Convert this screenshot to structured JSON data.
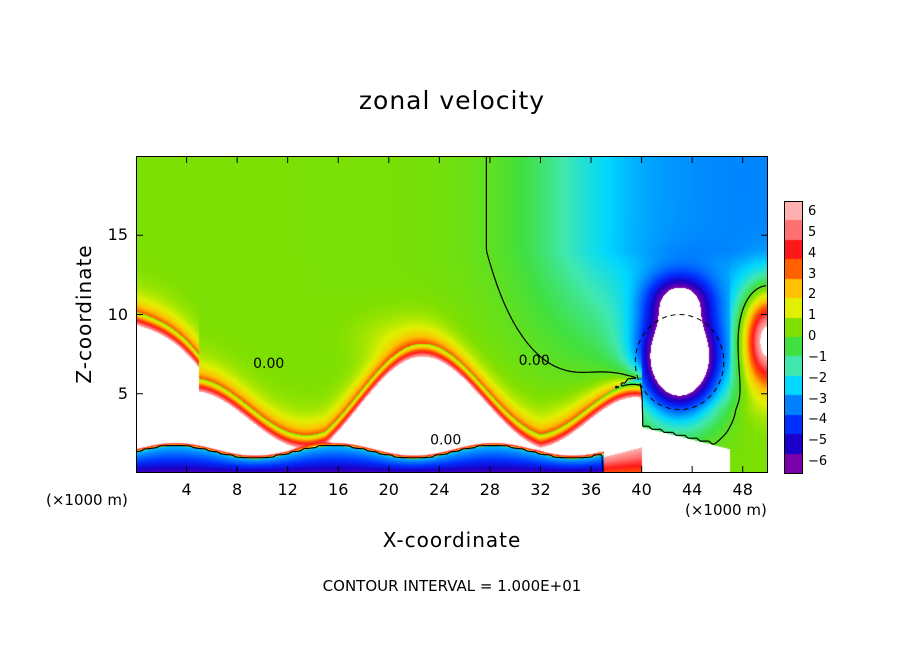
{
  "chart_data": {
    "type": "heatmap",
    "title": "zonal velocity",
    "xlabel": "X-coordinate",
    "ylabel": "Z-coordinate",
    "x_units": "(×1000 m)",
    "xlim": [
      0,
      50
    ],
    "ylim": [
      0,
      20
    ],
    "xticks": [
      4,
      8,
      12,
      16,
      20,
      24,
      28,
      32,
      36,
      40,
      44,
      48
    ],
    "xtick_labels": [
      "4",
      "8",
      "12",
      "16",
      "20",
      "24",
      "28",
      "32",
      "36",
      "40",
      "44",
      "48"
    ],
    "yticks": [
      5,
      10,
      15
    ],
    "ytick_labels": [
      "5",
      "10",
      "15"
    ],
    "colorbar": {
      "range": [
        -6,
        6
      ],
      "ticks": [
        6,
        5,
        4,
        3,
        2,
        1,
        0,
        -1,
        -2,
        -3,
        -4,
        -5,
        -6
      ],
      "tick_labels": [
        "6",
        "5",
        "4",
        "3",
        "2",
        "1",
        "0",
        "−1",
        "−2",
        "−3",
        "−4",
        "−5",
        "−6"
      ],
      "colors": [
        "#7a00a8",
        "#1a00c8",
        "#0030ff",
        "#0080ff",
        "#00d8ff",
        "#40e8b0",
        "#40e040",
        "#80e000",
        "#e0f000",
        "#ffc000",
        "#ff6000",
        "#ff1818",
        "#ff7070",
        "#ffb0b0"
      ],
      "out_of_range_color": "#ffffff"
    },
    "contour_labels": [
      {
        "text": "0.00",
        "x": 10.5,
        "z": 6.8
      },
      {
        "text": "0.00",
        "x": 31.5,
        "z": 7.0
      },
      {
        "text": "0.00",
        "x": 24.5,
        "z": 2.0
      }
    ],
    "contour_interval_text": "CONTOUR INTERVAL = 1.000E+01",
    "features": {
      "positive_jet_near_surface": {
        "x_range": [
          0,
          40
        ],
        "z_range": [
          0,
          5
        ],
        "approx_max": 6
      },
      "negative_core": {
        "x_center": 43,
        "z_center": 7,
        "approx_min": -6
      },
      "upper_levels": {
        "z_range": [
          12,
          20
        ],
        "value_west": 0.3,
        "value_east": -4
      }
    }
  },
  "labels": {
    "footnote": "CONTOUR INTERVAL = 1.000E+01",
    "x_units_left": "(×1000 m)",
    "x_units_right": "(×1000 m)"
  }
}
